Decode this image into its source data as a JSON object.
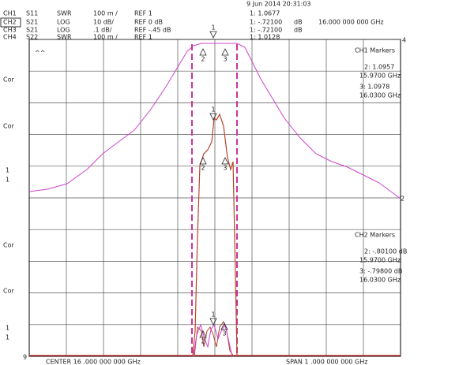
{
  "header": {
    "date": "9 Jun 2014  20:31:03",
    "rows": [
      [
        "CH1",
        "S11",
        "SWR",
        "100 m /",
        "REF 1",
        "1: 1.0677"
      ],
      [
        "CH2",
        "S21",
        "LOG",
        "10 dB/",
        "REF 0 dB",
        "1: -.72100",
        "dB",
        "16.000  000  000  GHz"
      ],
      [
        "CH3",
        "S21",
        "LOG",
        ".1 dB/",
        "REF -.45 dB",
        "1: -.72100",
        "dB"
      ],
      [
        "CH4",
        "S22",
        "SWR",
        "100 m /",
        "REF 1",
        "1: 1.0128"
      ]
    ]
  },
  "left_labels": [
    "^^",
    "Cor",
    "Cor",
    "1",
    "1",
    "Cor",
    "Cor",
    "1",
    "1",
    "9"
  ],
  "right_labels": [
    "4",
    "2"
  ],
  "markers_ch1": {
    "title": "CH1   Markers",
    "lines": [
      "2: 1.0957",
      "15.9700  GHz",
      "3: 1.0978",
      "16.0300  GHz"
    ]
  },
  "markers_ch2": {
    "title": "CH2   Markers",
    "lines": [
      "2: -.80100    dB",
      "15.9700  GHz",
      "3: -.79800    dB",
      "16.0300  GHz"
    ]
  },
  "trace_markers": [
    "1",
    "2",
    "3",
    "1",
    "2",
    "3",
    "2",
    "1",
    "3"
  ],
  "footer": {
    "center": "CENTER   16 .000   000   000   GHz",
    "span": "SPAN   1 .000   000   000   GHz"
  }
}
